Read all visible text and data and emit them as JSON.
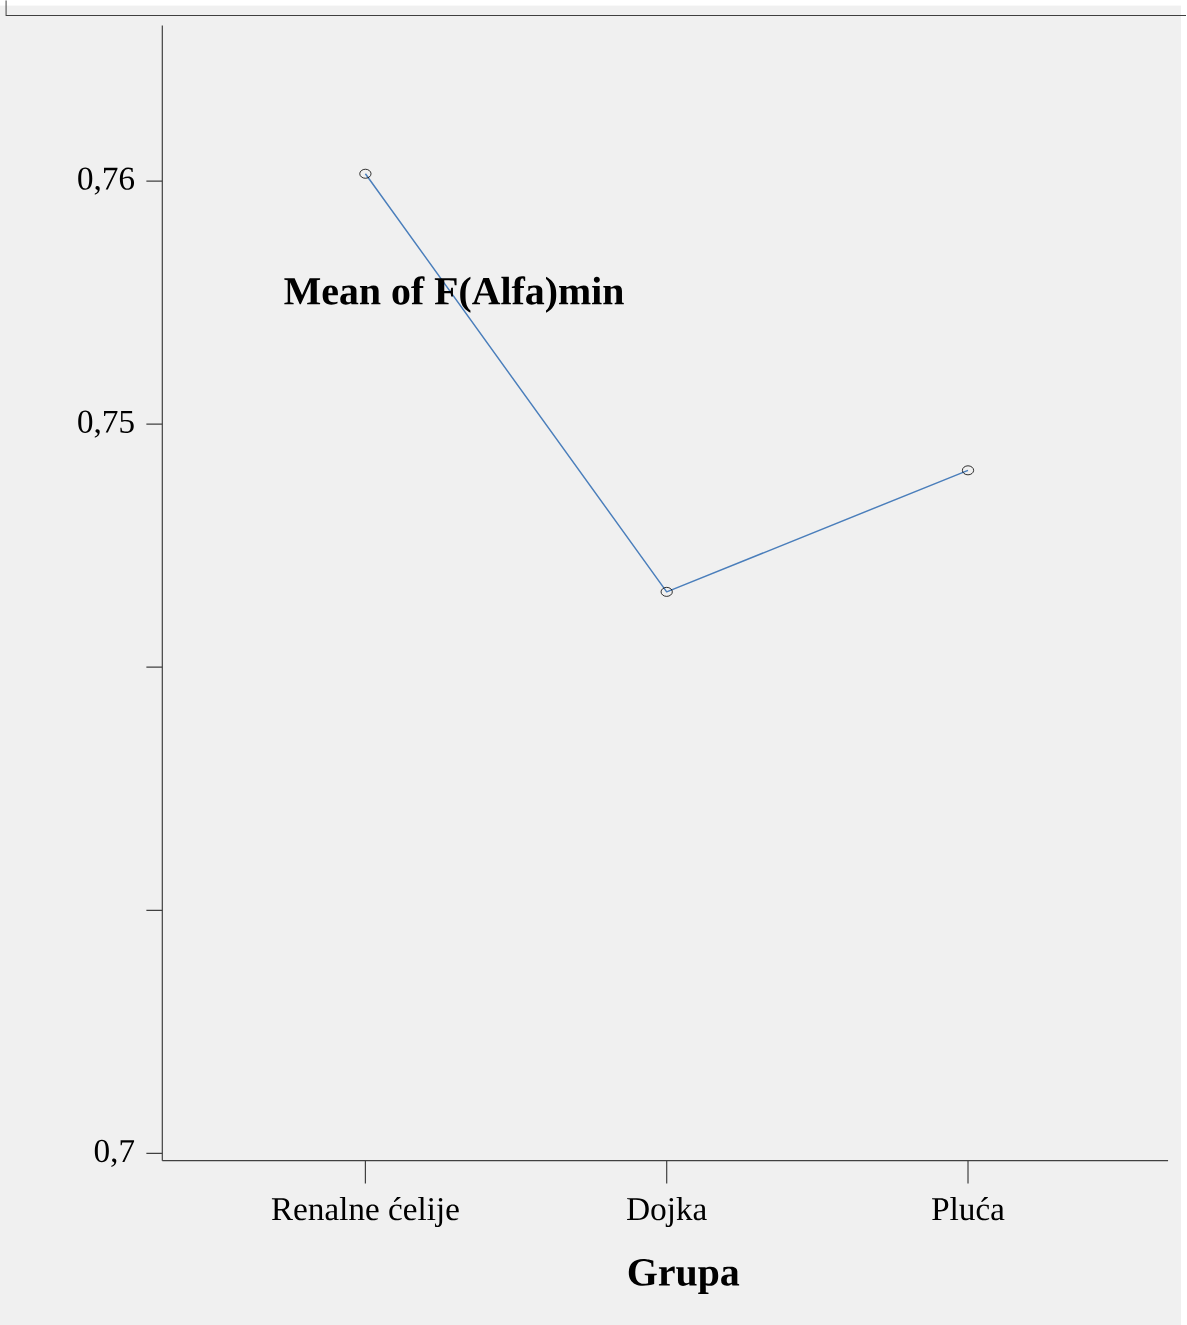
{
  "chart_data": {
    "type": "line",
    "xlabel": "Grupa",
    "ylabel": "Mean of F(Alfa)min",
    "categories": [
      "Renalne ćelije",
      "Dojka",
      "Pluća"
    ],
    "series": [
      {
        "color": "#4a7ebb",
        "values": [
          0.7603,
          0.7431,
          0.7481
        ]
      }
    ],
    "ylim": [
      0.7197,
      0.7664
    ],
    "yticks": [
      {
        "value": 0.72,
        "label": "0,7"
      },
      {
        "value": 0.73,
        "label": null
      },
      {
        "value": 0.74,
        "label": null
      },
      {
        "value": 0.75,
        "label": "0,75"
      },
      {
        "value": 0.76,
        "label": "0,76"
      }
    ],
    "marker": "circle"
  }
}
